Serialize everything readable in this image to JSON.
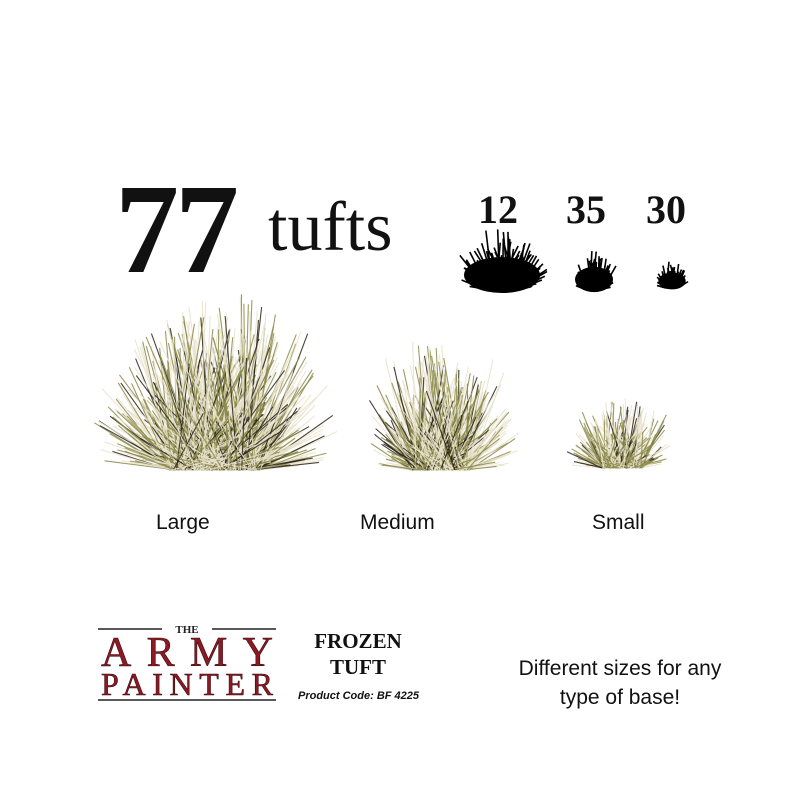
{
  "headline": {
    "count": "77",
    "word": "tufts"
  },
  "breakdown": [
    {
      "count": "12",
      "size": "Large"
    },
    {
      "count": "35",
      "size": "Medium"
    },
    {
      "count": "30",
      "size": "Small"
    }
  ],
  "brand": {
    "logo_text_top": "THE",
    "logo_text_line1": "ARMY",
    "logo_text_line2": "PAINTER",
    "logo_color": "#8b1a24"
  },
  "product": {
    "name_line1": "FROZEN",
    "name_line2": "TUFT",
    "code": "Product Code: BF 4225"
  },
  "tagline": "Different sizes for any type of base!",
  "colors": {
    "tuft_pale": "#e8e2cc",
    "tuft_olive": "#8c8a4a",
    "tuft_dark": "#2a2418",
    "silhouette": "#000000"
  }
}
